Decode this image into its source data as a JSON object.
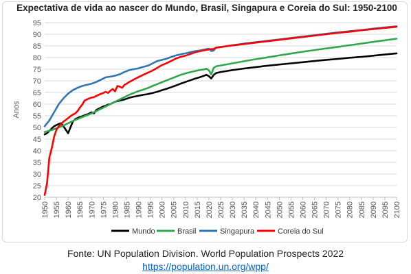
{
  "chart_data": {
    "type": "line",
    "title": "Expectativa de vida ao nascer do Mundo, Brasil, Singapura e Coreia do Sul: 1950-2100",
    "xlabel": "",
    "ylabel": "Anos",
    "xlim": [
      1950,
      2100
    ],
    "ylim": [
      20,
      95
    ],
    "x_ticks": [
      1950,
      1955,
      1960,
      1965,
      1970,
      1975,
      1980,
      1985,
      1990,
      1995,
      2000,
      2005,
      2010,
      2015,
      2020,
      2025,
      2030,
      2035,
      2040,
      2045,
      2050,
      2055,
      2060,
      2065,
      2070,
      2075,
      2080,
      2085,
      2090,
      2095,
      2100
    ],
    "y_ticks": [
      20,
      25,
      30,
      35,
      40,
      45,
      50,
      55,
      60,
      65,
      70,
      75,
      80,
      85,
      90,
      95
    ],
    "grid": true,
    "legend_position": "bottom",
    "series": [
      {
        "name": "Mundo",
        "color": "#000000",
        "points": [
          [
            1950,
            47.0
          ],
          [
            1951,
            47.5
          ],
          [
            1952,
            48.5
          ],
          [
            1953,
            49.5
          ],
          [
            1954,
            50.5
          ],
          [
            1955,
            51.0
          ],
          [
            1956,
            51.5
          ],
          [
            1957,
            51.8
          ],
          [
            1958,
            50.5
          ],
          [
            1959,
            49.0
          ],
          [
            1960,
            47.5
          ],
          [
            1961,
            50.0
          ],
          [
            1962,
            52.5
          ],
          [
            1963,
            53.5
          ],
          [
            1964,
            54.0
          ],
          [
            1965,
            54.5
          ],
          [
            1966,
            54.8
          ],
          [
            1967,
            55.2
          ],
          [
            1968,
            55.5
          ],
          [
            1969,
            56.0
          ],
          [
            1970,
            56.5
          ],
          [
            1971,
            56.0
          ],
          [
            1972,
            57.5
          ],
          [
            1973,
            58.0
          ],
          [
            1974,
            58.5
          ],
          [
            1975,
            59.0
          ],
          [
            1976,
            59.3
          ],
          [
            1977,
            59.8
          ],
          [
            1978,
            60.0
          ],
          [
            1979,
            60.5
          ],
          [
            1980,
            61.0
          ],
          [
            1982,
            61.5
          ],
          [
            1984,
            62.0
          ],
          [
            1986,
            62.7
          ],
          [
            1988,
            63.2
          ],
          [
            1990,
            63.6
          ],
          [
            1992,
            64.0
          ],
          [
            1994,
            64.3
          ],
          [
            1996,
            64.8
          ],
          [
            1998,
            65.3
          ],
          [
            2000,
            66.0
          ],
          [
            2002,
            66.6
          ],
          [
            2004,
            67.3
          ],
          [
            2006,
            68.0
          ],
          [
            2008,
            68.8
          ],
          [
            2010,
            69.5
          ],
          [
            2012,
            70.2
          ],
          [
            2014,
            70.9
          ],
          [
            2016,
            71.5
          ],
          [
            2018,
            72.2
          ],
          [
            2019,
            72.6
          ],
          [
            2020,
            72.0
          ],
          [
            2021,
            71.0
          ],
          [
            2022,
            72.5
          ],
          [
            2023,
            73.3
          ],
          [
            2025,
            73.8
          ],
          [
            2030,
            74.6
          ],
          [
            2035,
            75.3
          ],
          [
            2040,
            75.9
          ],
          [
            2045,
            76.5
          ],
          [
            2050,
            77.0
          ],
          [
            2055,
            77.5
          ],
          [
            2060,
            78.0
          ],
          [
            2065,
            78.5
          ],
          [
            2070,
            79.0
          ],
          [
            2075,
            79.4
          ],
          [
            2080,
            79.9
          ],
          [
            2085,
            80.3
          ],
          [
            2090,
            80.8
          ],
          [
            2095,
            81.3
          ],
          [
            2100,
            81.8
          ]
        ]
      },
      {
        "name": "Brasil",
        "color": "#2ea84a",
        "points": [
          [
            1950,
            48.0
          ],
          [
            1952,
            48.6
          ],
          [
            1954,
            49.2
          ],
          [
            1956,
            50.0
          ],
          [
            1958,
            50.8
          ],
          [
            1960,
            51.8
          ],
          [
            1962,
            52.8
          ],
          [
            1964,
            53.6
          ],
          [
            1966,
            54.4
          ],
          [
            1968,
            55.2
          ],
          [
            1970,
            56.0
          ],
          [
            1972,
            57.0
          ],
          [
            1974,
            58.0
          ],
          [
            1976,
            59.0
          ],
          [
            1978,
            60.0
          ],
          [
            1980,
            61.0
          ],
          [
            1982,
            62.0
          ],
          [
            1984,
            63.0
          ],
          [
            1986,
            64.0
          ],
          [
            1988,
            64.8
          ],
          [
            1990,
            65.6
          ],
          [
            1992,
            66.2
          ],
          [
            1994,
            66.9
          ],
          [
            1996,
            67.8
          ],
          [
            1998,
            68.6
          ],
          [
            2000,
            69.4
          ],
          [
            2002,
            70.2
          ],
          [
            2004,
            71.0
          ],
          [
            2006,
            71.8
          ],
          [
            2008,
            72.6
          ],
          [
            2010,
            73.2
          ],
          [
            2012,
            73.7
          ],
          [
            2014,
            74.2
          ],
          [
            2016,
            74.6
          ],
          [
            2018,
            74.9
          ],
          [
            2019,
            75.2
          ],
          [
            2020,
            74.5
          ],
          [
            2021,
            72.8
          ],
          [
            2022,
            75.5
          ],
          [
            2023,
            76.2
          ],
          [
            2025,
            76.6
          ],
          [
            2030,
            77.5
          ],
          [
            2035,
            78.4
          ],
          [
            2040,
            79.3
          ],
          [
            2045,
            80.1
          ],
          [
            2050,
            80.9
          ],
          [
            2055,
            81.7
          ],
          [
            2060,
            82.5
          ],
          [
            2065,
            83.2
          ],
          [
            2070,
            83.9
          ],
          [
            2075,
            84.6
          ],
          [
            2080,
            85.3
          ],
          [
            2085,
            86.0
          ],
          [
            2090,
            86.7
          ],
          [
            2095,
            87.4
          ],
          [
            2100,
            88.1
          ]
        ]
      },
      {
        "name": "Singapura",
        "color": "#2e75b6",
        "points": [
          [
            1950,
            50.5
          ],
          [
            1952,
            53.0
          ],
          [
            1954,
            56.5
          ],
          [
            1956,
            60.0
          ],
          [
            1958,
            62.5
          ],
          [
            1960,
            64.5
          ],
          [
            1962,
            66.0
          ],
          [
            1964,
            67.0
          ],
          [
            1966,
            67.8
          ],
          [
            1968,
            68.3
          ],
          [
            1970,
            68.8
          ],
          [
            1972,
            69.5
          ],
          [
            1974,
            70.5
          ],
          [
            1976,
            71.5
          ],
          [
            1978,
            71.8
          ],
          [
            1980,
            72.2
          ],
          [
            1982,
            72.8
          ],
          [
            1984,
            73.8
          ],
          [
            1986,
            74.6
          ],
          [
            1988,
            75.0
          ],
          [
            1990,
            75.4
          ],
          [
            1992,
            76.0
          ],
          [
            1994,
            76.5
          ],
          [
            1996,
            77.5
          ],
          [
            1998,
            78.5
          ],
          [
            2000,
            79.0
          ],
          [
            2002,
            79.5
          ],
          [
            2004,
            80.3
          ],
          [
            2006,
            80.9
          ],
          [
            2008,
            81.4
          ],
          [
            2010,
            81.8
          ],
          [
            2012,
            82.3
          ],
          [
            2014,
            82.7
          ],
          [
            2016,
            83.0
          ],
          [
            2018,
            83.4
          ],
          [
            2019,
            83.6
          ],
          [
            2020,
            83.8
          ],
          [
            2021,
            82.8
          ],
          [
            2022,
            83.0
          ],
          [
            2023,
            84.2
          ],
          [
            2025,
            84.5
          ],
          [
            2030,
            85.3
          ],
          [
            2035,
            86.0
          ],
          [
            2040,
            86.6
          ],
          [
            2045,
            87.2
          ],
          [
            2050,
            87.8
          ],
          [
            2055,
            88.4
          ],
          [
            2060,
            89.0
          ],
          [
            2065,
            89.6
          ],
          [
            2070,
            90.2
          ],
          [
            2075,
            90.8
          ],
          [
            2080,
            91.3
          ],
          [
            2085,
            91.8
          ],
          [
            2090,
            92.4
          ],
          [
            2095,
            92.9
          ],
          [
            2100,
            93.4
          ]
        ]
      },
      {
        "name": "Coreia do Sul",
        "color": "#ff0000",
        "points": [
          [
            1950,
            21.0
          ],
          [
            1951,
            26.0
          ],
          [
            1952,
            37.0
          ],
          [
            1953,
            41.0
          ],
          [
            1954,
            46.0
          ],
          [
            1955,
            49.0
          ],
          [
            1956,
            50.5
          ],
          [
            1957,
            51.5
          ],
          [
            1958,
            52.5
          ],
          [
            1959,
            53.2
          ],
          [
            1960,
            54.0
          ],
          [
            1961,
            54.8
          ],
          [
            1962,
            55.5
          ],
          [
            1963,
            56.0
          ],
          [
            1964,
            57.0
          ],
          [
            1965,
            58.5
          ],
          [
            1966,
            59.8
          ],
          [
            1967,
            61.5
          ],
          [
            1968,
            62.0
          ],
          [
            1969,
            62.5
          ],
          [
            1970,
            62.8
          ],
          [
            1971,
            63.0
          ],
          [
            1972,
            63.5
          ],
          [
            1973,
            64.0
          ],
          [
            1974,
            64.4
          ],
          [
            1975,
            64.8
          ],
          [
            1976,
            65.3
          ],
          [
            1977,
            64.8
          ],
          [
            1978,
            65.8
          ],
          [
            1979,
            66.5
          ],
          [
            1980,
            65.5
          ],
          [
            1981,
            67.8
          ],
          [
            1982,
            67.5
          ],
          [
            1983,
            67.0
          ],
          [
            1984,
            68.3
          ],
          [
            1985,
            68.8
          ],
          [
            1986,
            69.5
          ],
          [
            1987,
            70.0
          ],
          [
            1988,
            70.6
          ],
          [
            1990,
            71.6
          ],
          [
            1992,
            72.6
          ],
          [
            1994,
            73.5
          ],
          [
            1996,
            74.4
          ],
          [
            1998,
            75.6
          ],
          [
            2000,
            76.8
          ],
          [
            2002,
            77.6
          ],
          [
            2004,
            78.6
          ],
          [
            2006,
            79.6
          ],
          [
            2008,
            80.3
          ],
          [
            2010,
            80.8
          ],
          [
            2012,
            81.5
          ],
          [
            2014,
            82.2
          ],
          [
            2016,
            82.7
          ],
          [
            2018,
            83.1
          ],
          [
            2020,
            83.5
          ],
          [
            2022,
            83.7
          ],
          [
            2023,
            84.2
          ],
          [
            2025,
            84.5
          ],
          [
            2030,
            85.2
          ],
          [
            2035,
            85.8
          ],
          [
            2040,
            86.4
          ],
          [
            2045,
            87.0
          ],
          [
            2050,
            87.6
          ],
          [
            2055,
            88.2
          ],
          [
            2060,
            88.8
          ],
          [
            2065,
            89.4
          ],
          [
            2070,
            90.0
          ],
          [
            2075,
            90.6
          ],
          [
            2080,
            91.1
          ],
          [
            2085,
            91.7
          ],
          [
            2090,
            92.2
          ],
          [
            2095,
            92.7
          ],
          [
            2100,
            93.2
          ]
        ]
      }
    ]
  },
  "footer": {
    "source": "Fonte: UN Population Division. World Population Prospects 2022",
    "link": "https://population.un.org/wpp/"
  }
}
